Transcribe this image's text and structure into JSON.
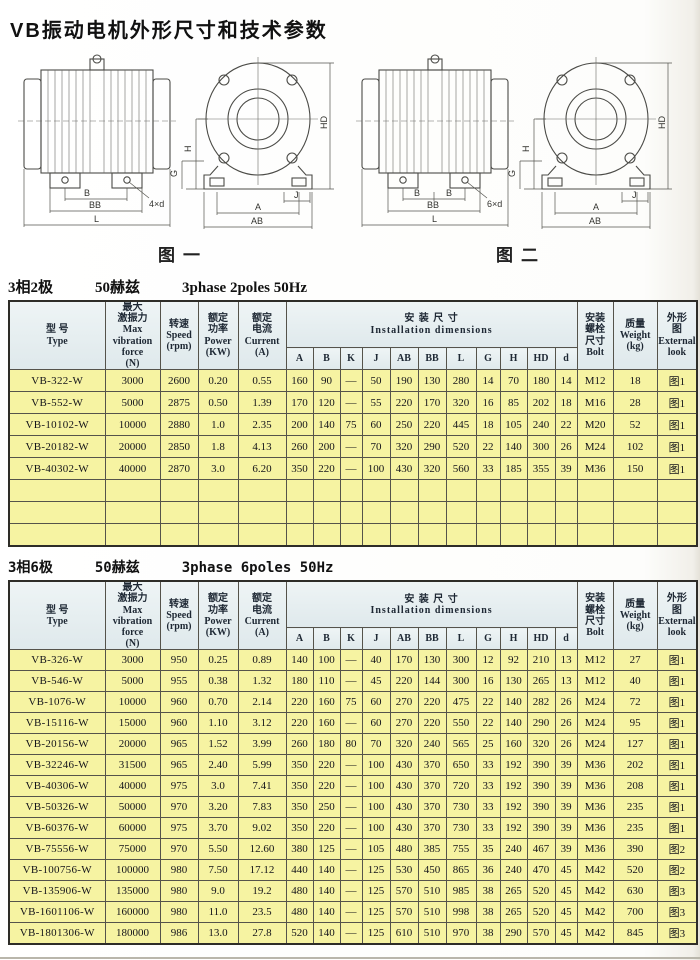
{
  "page_title": "VB振动电机外形尺寸和技术参数",
  "figures": [
    {
      "caption": "图一",
      "labels": {
        "b": "B",
        "b2": "",
        "bb": "BB",
        "l": "L",
        "d_callout": "4×d",
        "h": "H",
        "g": "G",
        "hd": "HD",
        "j": "J",
        "a": "A",
        "ab": "AB"
      }
    },
    {
      "caption": "图二",
      "labels": {
        "b": "B",
        "b2": "B",
        "bb": "BB",
        "l": "L",
        "d_callout": "6×d",
        "h": "H",
        "g": "G",
        "hd": "HD",
        "j": "J",
        "a": "A",
        "ab": "AB"
      }
    }
  ],
  "table_header": {
    "type": "型  号\nType",
    "force": "最大\n激振力\nMax\nvibration\nforce\n(N)",
    "speed": "转速\nSpeed\n(rpm)",
    "power": "额定\n功率\nPower\n(KW)",
    "current": "额定\n电流\nCurrent\n(A)",
    "install": "安 装 尺 寸\nInstallation dimensions",
    "dims": [
      "A",
      "B",
      "K",
      "J",
      "AB",
      "BB",
      "L",
      "G",
      "H",
      "HD",
      "d"
    ],
    "bolt": "安装\n螺栓\n尺寸\nBolt",
    "weight": "质量\nWeight\n(kg)",
    "look": "外形\n图\nExternal\nlook"
  },
  "tables": [
    {
      "title_cn": "3相2极",
      "title_freq": "50赫兹",
      "title_en": "3phase 2poles 50Hz",
      "rows": [
        [
          "VB-322-W",
          "3000",
          "2600",
          "0.20",
          "0.55",
          "160",
          "90",
          "—",
          "50",
          "190",
          "130",
          "280",
          "14",
          "70",
          "180",
          "14",
          "M12",
          "18",
          "图1"
        ],
        [
          "VB-552-W",
          "5000",
          "2875",
          "0.50",
          "1.39",
          "170",
          "120",
          "—",
          "55",
          "220",
          "170",
          "320",
          "16",
          "85",
          "202",
          "18",
          "M16",
          "28",
          "图1"
        ],
        [
          "VB-10102-W",
          "10000",
          "2880",
          "1.0",
          "2.35",
          "200",
          "140",
          "75",
          "60",
          "250",
          "220",
          "445",
          "18",
          "105",
          "240",
          "22",
          "M20",
          "52",
          "图1"
        ],
        [
          "VB-20182-W",
          "20000",
          "2850",
          "1.8",
          "4.13",
          "260",
          "200",
          "—",
          "70",
          "320",
          "290",
          "520",
          "22",
          "140",
          "300",
          "26",
          "M24",
          "102",
          "图1"
        ],
        [
          "VB-40302-W",
          "40000",
          "2870",
          "3.0",
          "6.20",
          "350",
          "220",
          "—",
          "100",
          "430",
          "320",
          "560",
          "33",
          "185",
          "355",
          "39",
          "M36",
          "150",
          "图1"
        ],
        [
          "",
          "",
          "",
          "",
          "",
          "",
          "",
          "",
          "",
          "",
          "",
          "",
          "",
          "",
          "",
          "",
          "",
          "",
          ""
        ],
        [
          "",
          "",
          "",
          "",
          "",
          "",
          "",
          "",
          "",
          "",
          "",
          "",
          "",
          "",
          "",
          "",
          "",
          "",
          ""
        ],
        [
          "",
          "",
          "",
          "",
          "",
          "",
          "",
          "",
          "",
          "",
          "",
          "",
          "",
          "",
          "",
          "",
          "",
          "",
          ""
        ]
      ]
    },
    {
      "title_cn": "3相6极",
      "title_freq": "50赫兹",
      "title_en": "3phase 6poles 50Hz",
      "rows": [
        [
          "VB-326-W",
          "3000",
          "950",
          "0.25",
          "0.89",
          "140",
          "100",
          "—",
          "40",
          "170",
          "130",
          "300",
          "12",
          "92",
          "210",
          "13",
          "M12",
          "27",
          "图1"
        ],
        [
          "VB-546-W",
          "5000",
          "955",
          "0.38",
          "1.32",
          "180",
          "110",
          "—",
          "45",
          "220",
          "144",
          "300",
          "16",
          "130",
          "265",
          "13",
          "M12",
          "40",
          "图1"
        ],
        [
          "VB-1076-W",
          "10000",
          "960",
          "0.70",
          "2.14",
          "220",
          "160",
          "75",
          "60",
          "270",
          "220",
          "475",
          "22",
          "140",
          "282",
          "26",
          "M24",
          "72",
          "图1"
        ],
        [
          "VB-15116-W",
          "15000",
          "960",
          "1.10",
          "3.12",
          "220",
          "160",
          "—",
          "60",
          "270",
          "220",
          "550",
          "22",
          "140",
          "290",
          "26",
          "M24",
          "95",
          "图1"
        ],
        [
          "VB-20156-W",
          "20000",
          "965",
          "1.52",
          "3.99",
          "260",
          "180",
          "80",
          "70",
          "320",
          "240",
          "565",
          "25",
          "160",
          "320",
          "26",
          "M24",
          "127",
          "图1"
        ],
        [
          "VB-32246-W",
          "31500",
          "965",
          "2.40",
          "5.99",
          "350",
          "220",
          "—",
          "100",
          "430",
          "370",
          "650",
          "33",
          "192",
          "390",
          "39",
          "M36",
          "202",
          "图1"
        ],
        [
          "VB-40306-W",
          "40000",
          "975",
          "3.0",
          "7.41",
          "350",
          "220",
          "—",
          "100",
          "430",
          "370",
          "720",
          "33",
          "192",
          "390",
          "39",
          "M36",
          "208",
          "图1"
        ],
        [
          "VB-50326-W",
          "50000",
          "970",
          "3.20",
          "7.83",
          "350",
          "250",
          "—",
          "100",
          "430",
          "370",
          "730",
          "33",
          "192",
          "390",
          "39",
          "M36",
          "235",
          "图1"
        ],
        [
          "VB-60376-W",
          "60000",
          "975",
          "3.70",
          "9.02",
          "350",
          "220",
          "—",
          "100",
          "430",
          "370",
          "730",
          "33",
          "192",
          "390",
          "39",
          "M36",
          "235",
          "图1"
        ],
        [
          "VB-75556-W",
          "75000",
          "970",
          "5.50",
          "12.60",
          "380",
          "125",
          "—",
          "105",
          "480",
          "385",
          "755",
          "35",
          "240",
          "467",
          "39",
          "M36",
          "390",
          "图2"
        ],
        [
          "VB-100756-W",
          "100000",
          "980",
          "7.50",
          "17.12",
          "440",
          "140",
          "—",
          "125",
          "530",
          "450",
          "865",
          "36",
          "240",
          "470",
          "45",
          "M42",
          "520",
          "图2"
        ],
        [
          "VB-135906-W",
          "135000",
          "980",
          "9.0",
          "19.2",
          "480",
          "140",
          "—",
          "125",
          "570",
          "510",
          "985",
          "38",
          "265",
          "520",
          "45",
          "M42",
          "630",
          "图3"
        ],
        [
          "VB-1601106-W",
          "160000",
          "980",
          "11.0",
          "23.5",
          "480",
          "140",
          "—",
          "125",
          "570",
          "510",
          "998",
          "38",
          "265",
          "520",
          "45",
          "M42",
          "700",
          "图3"
        ],
        [
          "VB-1801306-W",
          "180000",
          "986",
          "13.0",
          "27.8",
          "520",
          "140",
          "—",
          "125",
          "610",
          "510",
          "970",
          "38",
          "290",
          "570",
          "45",
          "M42",
          "845",
          "图3"
        ]
      ]
    }
  ]
}
